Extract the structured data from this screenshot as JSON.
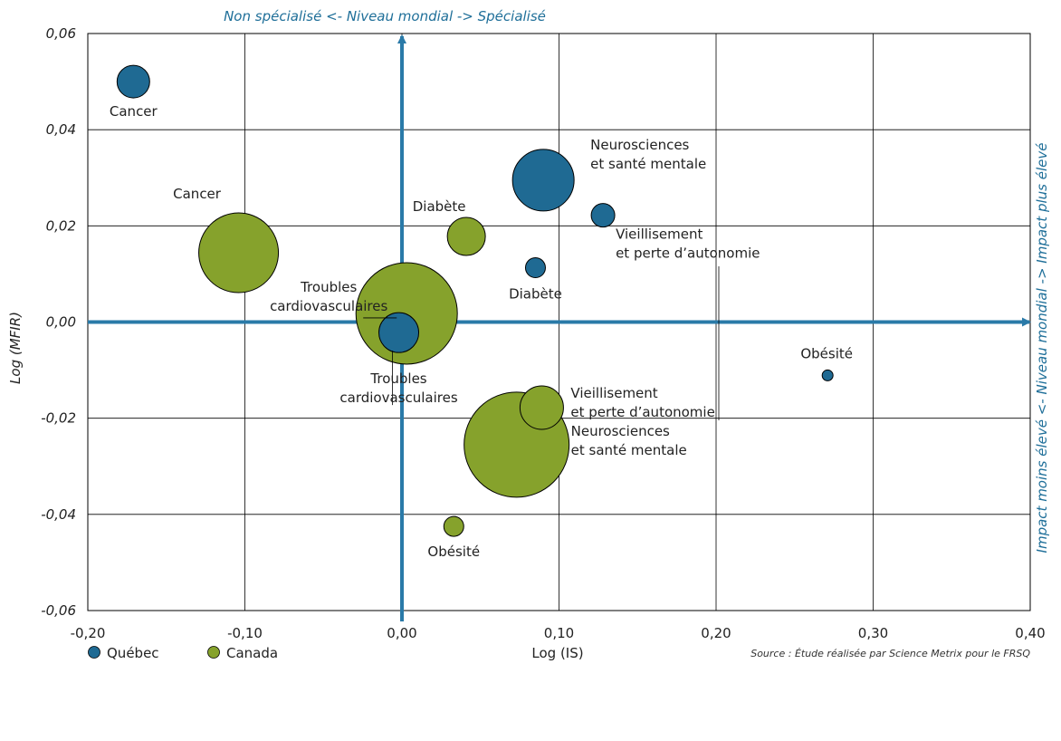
{
  "chart_data": {
    "type": "scatter",
    "subtype": "bubble",
    "title_top": "Non spécialisé <- Niveau mondial -> Spécialisé",
    "title_right": "Impact moins élevé <- Niveau mondial -> Impact plus élevé",
    "xlabel": "Log (IS)",
    "ylabel": "Log (MFIR)",
    "source": "Source : Étude réalisée par Science Metrix pour le FRSQ",
    "xlim": [
      -0.2,
      0.4
    ],
    "ylim": [
      -0.06,
      0.06
    ],
    "x_ticks": [
      "-0,20",
      "-0,10",
      "0,00",
      "0,10",
      "0,20",
      "0,30",
      "0,40"
    ],
    "y_ticks": [
      "0,06",
      "0,04",
      "0,02",
      "0,00",
      "-0,02",
      "-0,04",
      "-0,06"
    ],
    "grid": true,
    "legend_position": "bottom-left",
    "colors": {
      "quebec": "#1f6a93",
      "canada": "#86a22c",
      "axis": "#2a7aa8"
    },
    "series": [
      {
        "name": "Québec",
        "color": "#1f6a93",
        "points": [
          {
            "label": "Cancer",
            "x": -0.171,
            "y": 0.05,
            "size": 18
          },
          {
            "label": "Neurosciences\net santé mentale",
            "x": 0.09,
            "y": 0.0295,
            "size": 34
          },
          {
            "label": "Vieillisement\net perte d’autonomie",
            "x": 0.128,
            "y": 0.0222,
            "size": 13
          },
          {
            "label": "Diabète",
            "x": 0.085,
            "y": 0.0113,
            "size": 11
          },
          {
            "label": "Troubles\ncardiovasculaires",
            "x": -0.002,
            "y": -0.0022,
            "size": 22
          },
          {
            "label": "Obésité",
            "x": 0.271,
            "y": -0.0111,
            "size": 6
          }
        ]
      },
      {
        "name": "Canada",
        "color": "#86a22c",
        "points": [
          {
            "label": "Cancer",
            "x": -0.104,
            "y": 0.0144,
            "size": 44
          },
          {
            "label": "Diabète",
            "x": 0.041,
            "y": 0.0178,
            "size": 21
          },
          {
            "label": "Troubles\ncardiovasculaires",
            "x": 0.003,
            "y": 0.0018,
            "size": 56
          },
          {
            "label": "Vieillisement\net perte d’autonomie",
            "x": 0.089,
            "y": -0.0178,
            "size": 24
          },
          {
            "label": "Neurosciences\net santé mentale",
            "x": 0.073,
            "y": -0.0255,
            "size": 58
          },
          {
            "label": "Obésité",
            "x": 0.033,
            "y": -0.0425,
            "size": 11
          }
        ]
      }
    ]
  }
}
